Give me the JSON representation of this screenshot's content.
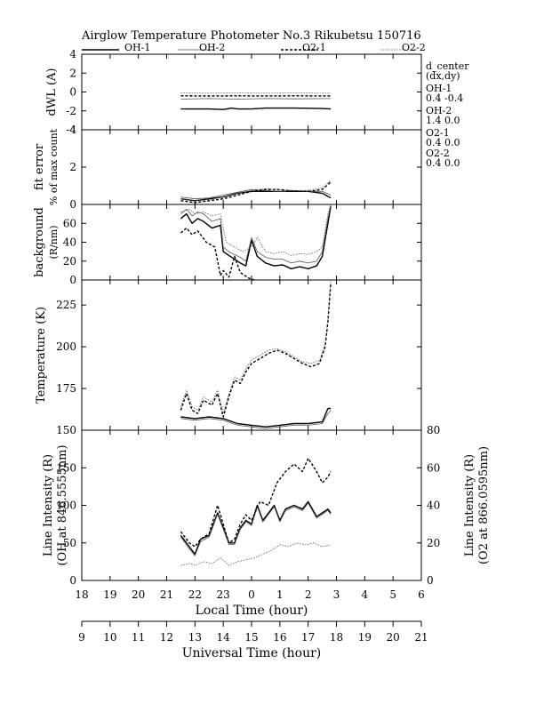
{
  "title": "Airglow Temperature Photometer No.3  Rikubetsu    150716",
  "legend": [
    {
      "label": "OH-1",
      "style": "solid",
      "color": "#000000",
      "width": 1.4
    },
    {
      "label": "OH-2",
      "style": "solid",
      "color": "#555555",
      "width": 0.8
    },
    {
      "label": "O2-1",
      "style": "dashed",
      "color": "#000000",
      "width": 1.4
    },
    {
      "label": "O2-2",
      "style": "dotted",
      "color": "#555555",
      "width": 0.8
    }
  ],
  "side_notes": {
    "header1": "d_center",
    "header2": "(dx,dy)",
    "entries": [
      {
        "name": "OH-1",
        "value": "0.4   -0.4"
      },
      {
        "name": "OH-2",
        "value": "1.4   0.0"
      },
      {
        "name": "O2-1",
        "value": "0.4   0.0"
      },
      {
        "name": "O2-2",
        "value": "0.4   0.0"
      }
    ]
  },
  "x_axes": {
    "local": {
      "label": "Local Time (hour)",
      "ticks": [
        "18",
        "19",
        "20",
        "21",
        "22",
        "23",
        "0",
        "1",
        "2",
        "3",
        "4",
        "5",
        "6"
      ]
    },
    "universal": {
      "label": "Universal Time (hour)",
      "ticks": [
        "9",
        "10",
        "11",
        "12",
        "13",
        "14",
        "15",
        "16",
        "17",
        "18",
        "19",
        "20",
        "21"
      ]
    }
  },
  "chart_data": [
    {
      "type": "line",
      "panel": "dwl",
      "ylabel": "dWL (A)",
      "ylim": [
        -4,
        4
      ],
      "yticks": [
        "4",
        "2",
        "0",
        "-2",
        "-4"
      ],
      "x_units": "universal time (hour)",
      "series": [
        {
          "name": "OH-1",
          "x": [
            12.5,
            13.5,
            14.0,
            14.3,
            14.5,
            15.0,
            15.5,
            16.5,
            17.5,
            17.8
          ],
          "y": [
            -1.8,
            -1.8,
            -1.85,
            -1.7,
            -1.8,
            -1.8,
            -1.7,
            -1.7,
            -1.75,
            -1.8
          ]
        },
        {
          "name": "OH-2",
          "x": [
            12.5,
            13.5,
            14.5,
            15.5,
            16.5,
            17.8
          ],
          "y": [
            -0.75,
            -0.7,
            -0.75,
            -0.7,
            -0.72,
            -0.7
          ]
        },
        {
          "name": "O2-1",
          "x": [
            12.5,
            13.5,
            14.5,
            15.5,
            16.5,
            17.8
          ],
          "y": [
            -0.4,
            -0.42,
            -0.4,
            -0.42,
            -0.4,
            -0.42
          ]
        },
        {
          "name": "O2-2",
          "x": [
            12.5,
            13.5,
            14.5,
            15.5,
            16.5,
            17.8
          ],
          "y": [
            -0.1,
            -0.12,
            -0.1,
            -0.12,
            -0.1,
            -0.12
          ]
        }
      ]
    },
    {
      "type": "line",
      "panel": "fit",
      "ylabel": "fit error",
      "ylabel2": "% of max count",
      "ylim": [
        0,
        4
      ],
      "yticks": [
        "4",
        "2",
        "0"
      ],
      "x_units": "universal time (hour)",
      "series": [
        {
          "name": "OH-1",
          "x": [
            12.5,
            13.0,
            13.5,
            14.0,
            14.5,
            15.0,
            15.5,
            16.0,
            16.5,
            17.0,
            17.5,
            17.8
          ],
          "y": [
            0.3,
            0.2,
            0.3,
            0.4,
            0.6,
            0.7,
            0.7,
            0.7,
            0.7,
            0.7,
            0.6,
            0.35
          ]
        },
        {
          "name": "OH-2",
          "x": [
            12.5,
            13.0,
            13.5,
            14.0,
            14.5,
            15.0,
            15.5,
            16.0,
            16.5,
            17.0,
            17.5,
            17.8
          ],
          "y": [
            0.4,
            0.3,
            0.35,
            0.5,
            0.65,
            0.8,
            0.75,
            0.7,
            0.75,
            0.7,
            0.7,
            0.5
          ]
        },
        {
          "name": "O2-1",
          "x": [
            12.5,
            13.0,
            13.5,
            14.0,
            14.5,
            15.0,
            15.5,
            16.0,
            16.5,
            17.0,
            17.5,
            17.8
          ],
          "y": [
            0.2,
            0.1,
            0.2,
            0.3,
            0.5,
            0.7,
            0.8,
            0.8,
            0.7,
            0.7,
            0.8,
            1.2
          ]
        },
        {
          "name": "O2-2",
          "x": [
            12.5,
            13.0,
            13.5,
            14.0,
            14.5,
            15.0,
            15.5,
            16.0,
            16.5,
            17.0,
            17.5,
            17.8
          ],
          "y": [
            0.3,
            0.2,
            0.25,
            0.4,
            0.6,
            0.75,
            0.85,
            0.8,
            0.75,
            0.75,
            0.9,
            1.3
          ]
        }
      ]
    },
    {
      "type": "line",
      "panel": "background",
      "ylabel": "background",
      "ylabel2": "(R/nm)",
      "ylim": [
        0,
        80
      ],
      "yticks": [
        "0",
        "20",
        "40",
        "60"
      ],
      "x_units": "universal time (hour)",
      "series": [
        {
          "name": "OH-1",
          "x": [
            12.5,
            12.7,
            12.9,
            13.1,
            13.3,
            13.6,
            13.9,
            14.0,
            14.2,
            14.4,
            14.6,
            14.8,
            15.0,
            15.2,
            15.5,
            15.8,
            16.1,
            16.4,
            16.7,
            17.0,
            17.3,
            17.5,
            17.7,
            17.8
          ],
          "y": [
            65,
            70,
            60,
            65,
            62,
            55,
            58,
            30,
            26,
            22,
            18,
            15,
            42,
            25,
            18,
            15,
            16,
            12,
            14,
            12,
            15,
            25,
            60,
            78
          ]
        },
        {
          "name": "OH-2",
          "x": [
            12.5,
            12.7,
            12.9,
            13.1,
            13.3,
            13.6,
            13.9,
            14.0,
            14.2,
            14.4,
            14.6,
            14.8,
            15.0,
            15.2,
            15.5,
            15.8,
            16.1,
            16.4,
            16.7,
            17.0,
            17.3,
            17.5,
            17.7,
            17.8
          ],
          "y": [
            70,
            75,
            68,
            72,
            70,
            62,
            65,
            35,
            30,
            27,
            24,
            20,
            45,
            30,
            24,
            22,
            22,
            18,
            20,
            18,
            20,
            30,
            65,
            80
          ]
        },
        {
          "name": "O2-1",
          "x": [
            12.5,
            12.7,
            12.9,
            13.1,
            13.4,
            13.7,
            13.9,
            14.0,
            14.2,
            14.4,
            14.6,
            14.9,
            15.1
          ],
          "y": [
            50,
            55,
            48,
            52,
            40,
            35,
            5,
            10,
            3,
            25,
            8,
            2,
            0
          ]
        },
        {
          "name": "O2-2",
          "x": [
            12.5,
            12.8,
            13.0,
            13.3,
            13.6,
            13.9,
            14.1,
            14.4,
            14.7,
            15.0,
            15.2,
            15.5,
            15.8,
            16.1,
            16.4,
            16.7,
            17.0,
            17.3,
            17.5,
            17.7,
            17.8
          ],
          "y": [
            72,
            75,
            70,
            72,
            68,
            70,
            40,
            35,
            30,
            35,
            45,
            30,
            28,
            30,
            26,
            28,
            27,
            30,
            35,
            70,
            80
          ]
        }
      ]
    },
    {
      "type": "line",
      "panel": "temperature",
      "ylabel": "Temperature (K)",
      "ylim": [
        150,
        240
      ],
      "yticks": [
        "150",
        "175",
        "200",
        "225"
      ],
      "x_units": "universal time (hour)",
      "series": [
        {
          "name": "OH-1",
          "x": [
            12.5,
            13.0,
            13.5,
            14.0,
            14.5,
            15.0,
            15.5,
            16.0,
            16.5,
            17.0,
            17.5,
            17.7,
            17.8
          ],
          "y": [
            158,
            157,
            158,
            157,
            154,
            153,
            152,
            153,
            154,
            154,
            155,
            163,
            163
          ]
        },
        {
          "name": "OH-2",
          "x": [
            12.5,
            13.0,
            13.5,
            14.0,
            14.5,
            15.0,
            15.5,
            16.0,
            16.5,
            17.0,
            17.5,
            17.7,
            17.8
          ],
          "y": [
            157,
            156,
            157,
            156,
            153,
            152,
            151,
            152,
            153,
            153,
            154,
            160,
            162
          ]
        },
        {
          "name": "O2-1",
          "x": [
            12.5,
            12.7,
            12.9,
            13.1,
            13.3,
            13.6,
            13.8,
            14.0,
            14.2,
            14.4,
            14.6,
            14.8,
            15.0,
            15.3,
            15.6,
            15.9,
            16.2,
            16.5,
            16.8,
            17.1,
            17.4,
            17.6,
            17.7,
            17.8
          ],
          "y": [
            162,
            172,
            162,
            160,
            168,
            165,
            172,
            158,
            170,
            180,
            178,
            185,
            190,
            193,
            196,
            198,
            196,
            193,
            190,
            188,
            190,
            200,
            215,
            238
          ]
        },
        {
          "name": "O2-2",
          "x": [
            12.5,
            12.7,
            12.9,
            13.1,
            13.3,
            13.6,
            13.8,
            14.0,
            14.2,
            14.4,
            14.6,
            14.8,
            15.0,
            15.3,
            15.6,
            15.9,
            16.2,
            16.5,
            16.8,
            17.1,
            17.4,
            17.6,
            17.7,
            17.8
          ],
          "y": [
            164,
            174,
            164,
            162,
            170,
            167,
            174,
            160,
            172,
            182,
            180,
            187,
            192,
            195,
            198,
            199,
            197,
            194,
            191,
            190,
            192,
            202,
            217,
            240
          ]
        }
      ]
    },
    {
      "type": "line",
      "panel": "intensity",
      "ylabel": "Line Intensity (R)",
      "ylabel2": "(OH at 846.5555nm)",
      "yrlabel": "Line Intensity (R)",
      "yrlabel2": "(O2 at 866.0595nm)",
      "ylim": [
        0,
        200
      ],
      "y2lim": [
        0,
        80
      ],
      "yticks": [
        "0",
        "50",
        "100",
        "150"
      ],
      "y2ticks": [
        "0",
        "20",
        "40",
        "60",
        "80"
      ],
      "x_units": "universal time (hour)",
      "series": [
        {
          "name": "OH-1",
          "axis": "left",
          "x": [
            12.5,
            12.8,
            13.0,
            13.2,
            13.5,
            13.8,
            14.0,
            14.2,
            14.4,
            14.6,
            14.8,
            15.0,
            15.2,
            15.4,
            15.6,
            15.8,
            16.0,
            16.2,
            16.5,
            16.8,
            17.0,
            17.3,
            17.5,
            17.7,
            17.8
          ],
          "y": [
            60,
            45,
            35,
            55,
            60,
            90,
            70,
            50,
            50,
            70,
            80,
            75,
            100,
            80,
            90,
            100,
            80,
            95,
            100,
            95,
            105,
            85,
            90,
            95,
            90
          ]
        },
        {
          "name": "OH-2",
          "axis": "left",
          "x": [
            12.5,
            12.8,
            13.0,
            13.2,
            13.5,
            13.8,
            14.0,
            14.2,
            14.4,
            14.6,
            14.8,
            15.0,
            15.2,
            15.4,
            15.6,
            15.8,
            16.0,
            16.2,
            16.5,
            16.8,
            17.0,
            17.3,
            17.5,
            17.7,
            17.8
          ],
          "y": [
            58,
            42,
            33,
            52,
            58,
            88,
            68,
            48,
            48,
            68,
            78,
            73,
            98,
            78,
            88,
            98,
            78,
            93,
            98,
            93,
            103,
            83,
            88,
            93,
            88
          ]
        },
        {
          "name": "O2-1",
          "axis": "right",
          "x": [
            12.5,
            12.8,
            13.0,
            13.2,
            13.5,
            13.8,
            14.0,
            14.2,
            14.4,
            14.6,
            14.8,
            15.0,
            15.3,
            15.6,
            15.9,
            16.2,
            16.5,
            16.8,
            17.0,
            17.3,
            17.5,
            17.7,
            17.8
          ],
          "y": [
            26,
            20,
            18,
            22,
            25,
            40,
            30,
            20,
            22,
            30,
            35,
            32,
            42,
            40,
            52,
            58,
            62,
            58,
            65,
            58,
            52,
            55,
            58
          ]
        },
        {
          "name": "O2-2",
          "axis": "right",
          "x": [
            12.5,
            12.8,
            13.0,
            13.3,
            13.6,
            13.9,
            14.2,
            14.5,
            14.8,
            15.1,
            15.4,
            15.7,
            16.0,
            16.3,
            16.6,
            16.9,
            17.2,
            17.5,
            17.8
          ],
          "y": [
            8,
            9,
            8,
            10,
            9,
            12,
            8,
            10,
            11,
            12,
            14,
            16,
            19,
            18,
            20,
            19,
            20,
            18,
            19
          ]
        }
      ]
    }
  ]
}
